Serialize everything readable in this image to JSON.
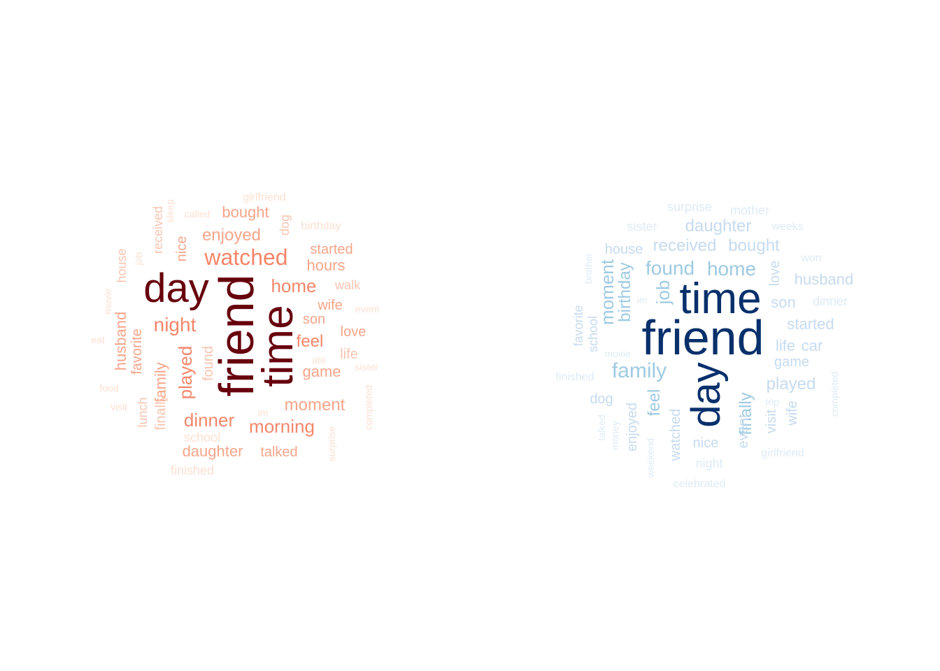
{
  "clouds": [
    {
      "name": "red-cloud",
      "words": [
        {
          "t": "friend",
          "w": 10,
          "c": "#67000d",
          "v": true
        },
        {
          "t": "time",
          "w": 9,
          "c": "#67000d",
          "v": true
        },
        {
          "t": "day",
          "w": 9,
          "c": "#67000d",
          "v": false
        },
        {
          "t": "watched",
          "w": 5,
          "c": "#f4866a",
          "v": false
        },
        {
          "t": "night",
          "w": 4,
          "c": "#f4866a",
          "v": false
        },
        {
          "t": "played",
          "w": 4,
          "c": "#f4866a",
          "v": true
        },
        {
          "t": "home",
          "w": 4,
          "c": "#f4866a",
          "v": false
        },
        {
          "t": "dinner",
          "w": 4,
          "c": "#f4866a",
          "v": false
        },
        {
          "t": "morning",
          "w": 4,
          "c": "#f4866a",
          "v": false
        },
        {
          "t": "enjoyed",
          "w": 3,
          "c": "#f6a58a",
          "v": false
        },
        {
          "t": "feel",
          "w": 3,
          "c": "#f4866a",
          "v": false
        },
        {
          "t": "moment",
          "w": 3,
          "c": "#f6a58a",
          "v": false
        },
        {
          "t": "game",
          "w": 3,
          "c": "#f6a58a",
          "v": false
        },
        {
          "t": "family",
          "w": 3,
          "c": "#f6a58a",
          "v": true
        },
        {
          "t": "bought",
          "w": 3,
          "c": "#f6a58a",
          "v": false
        },
        {
          "t": "hours",
          "w": 3,
          "c": "#f6a58a",
          "v": false
        },
        {
          "t": "daughter",
          "w": 3,
          "c": "#f6a58a",
          "v": false
        },
        {
          "t": "found",
          "w": 2,
          "c": "#f9c4b0",
          "v": true
        },
        {
          "t": "husband",
          "w": 3,
          "c": "#f6a58a",
          "v": true
        },
        {
          "t": "favorite",
          "w": 2,
          "c": "#f6a58a",
          "v": true
        },
        {
          "t": "love",
          "w": 2,
          "c": "#f6a58a",
          "v": false
        },
        {
          "t": "son",
          "w": 2,
          "c": "#f6a58a",
          "v": false
        },
        {
          "t": "wife",
          "w": 2,
          "c": "#f6a58a",
          "v": false
        },
        {
          "t": "started",
          "w": 2,
          "c": "#f6a58a",
          "v": false
        },
        {
          "t": "nice",
          "w": 2,
          "c": "#f6a58a",
          "v": true
        },
        {
          "t": "talked",
          "w": 2,
          "c": "#f6a58a",
          "v": false
        },
        {
          "t": "walk",
          "w": 2,
          "c": "#f9c4b0",
          "v": false
        },
        {
          "t": "life",
          "w": 2,
          "c": "#f9c4b0",
          "v": false
        },
        {
          "t": "finally",
          "w": 2,
          "c": "#f9c4b0",
          "v": true
        },
        {
          "t": "received",
          "w": 2,
          "c": "#f9c4b0",
          "v": true
        },
        {
          "t": "lunch",
          "w": 2,
          "c": "#f9c4b0",
          "v": true
        },
        {
          "t": "house",
          "w": 2,
          "c": "#f9c4b0",
          "v": true
        },
        {
          "t": "dog",
          "w": 2,
          "c": "#f9c4b0",
          "v": true
        },
        {
          "t": "school",
          "w": 2,
          "c": "#fde0d2",
          "v": false
        },
        {
          "t": "finished",
          "w": 1,
          "c": "#fde0d2",
          "v": false
        },
        {
          "t": "girlfriend",
          "w": 1,
          "c": "#fde0d2",
          "v": false
        },
        {
          "t": "birthday",
          "w": 1,
          "c": "#fde0d2",
          "v": false
        },
        {
          "t": "called",
          "w": 1,
          "c": "#fde0d2",
          "v": false
        },
        {
          "t": "sleep",
          "w": 1,
          "c": "#fde0d2",
          "v": true
        },
        {
          "t": "job",
          "w": 1,
          "c": "#fde0d2",
          "v": true
        },
        {
          "t": "movie",
          "w": 1,
          "c": "#fde0d2",
          "v": true
        },
        {
          "t": "event",
          "w": 1,
          "c": "#fde0d2",
          "v": false
        },
        {
          "t": "eat",
          "w": 1,
          "c": "#fde0d2",
          "v": false
        },
        {
          "t": "food",
          "w": 1,
          "c": "#fde0d2",
          "v": false
        },
        {
          "t": "visit",
          "w": 1,
          "c": "#fde0d2",
          "v": false
        },
        {
          "t": "ate",
          "w": 1,
          "c": "#fde0d2",
          "v": false
        },
        {
          "t": "sister",
          "w": 1,
          "c": "#fde0d2",
          "v": false
        },
        {
          "t": "completed",
          "w": 1,
          "c": "#fde0d2",
          "v": true
        },
        {
          "t": "im",
          "w": 1,
          "c": "#fde0d2",
          "v": false
        },
        {
          "t": "surprise",
          "w": 1,
          "c": "#fde0d2",
          "v": true
        }
      ]
    },
    {
      "name": "blue-cloud",
      "words": [
        {
          "t": "friend",
          "w": 10,
          "c": "#08306b",
          "v": false
        },
        {
          "t": "time",
          "w": 9,
          "c": "#08306b",
          "v": false
        },
        {
          "t": "day",
          "w": 9,
          "c": "#08306b",
          "v": true
        },
        {
          "t": "family",
          "w": 4,
          "c": "#9ecae1",
          "v": false
        },
        {
          "t": "found",
          "w": 4,
          "c": "#9ecae1",
          "v": false
        },
        {
          "t": "home",
          "w": 4,
          "c": "#9ecae1",
          "v": false
        },
        {
          "t": "job",
          "w": 3,
          "c": "#9ecae1",
          "v": true
        },
        {
          "t": "moment",
          "w": 3,
          "c": "#9ecae1",
          "v": true
        },
        {
          "t": "birthday",
          "w": 3,
          "c": "#9ecae1",
          "v": true
        },
        {
          "t": "feel",
          "w": 3,
          "c": "#9ecae1",
          "v": true
        },
        {
          "t": "finally",
          "w": 3,
          "c": "#9ecae1",
          "v": true
        },
        {
          "t": "daughter",
          "w": 3,
          "c": "#c6dbef",
          "v": false
        },
        {
          "t": "received",
          "w": 3,
          "c": "#c6dbef",
          "v": false
        },
        {
          "t": "bought",
          "w": 3,
          "c": "#c6dbef",
          "v": false
        },
        {
          "t": "husband",
          "w": 3,
          "c": "#c6dbef",
          "v": false
        },
        {
          "t": "son",
          "w": 2,
          "c": "#c6dbef",
          "v": false
        },
        {
          "t": "started",
          "w": 2,
          "c": "#c6dbef",
          "v": false
        },
        {
          "t": "life",
          "w": 2,
          "c": "#c6dbef",
          "v": false
        },
        {
          "t": "car",
          "w": 2,
          "c": "#c6dbef",
          "v": false
        },
        {
          "t": "game",
          "w": 2,
          "c": "#c6dbef",
          "v": false
        },
        {
          "t": "played",
          "w": 3,
          "c": "#c6dbef",
          "v": false
        },
        {
          "t": "enjoyed",
          "w": 2,
          "c": "#c6dbef",
          "v": true
        },
        {
          "t": "watched",
          "w": 2,
          "c": "#c6dbef",
          "v": true
        },
        {
          "t": "event",
          "w": 2,
          "c": "#c6dbef",
          "v": true
        },
        {
          "t": "visit",
          "w": 2,
          "c": "#c6dbef",
          "v": true
        },
        {
          "t": "wife",
          "w": 2,
          "c": "#c6dbef",
          "v": true
        },
        {
          "t": "love",
          "w": 2,
          "c": "#c6dbef",
          "v": true
        },
        {
          "t": "house",
          "w": 2,
          "c": "#c6dbef",
          "v": false
        },
        {
          "t": "nice",
          "w": 2,
          "c": "#c6dbef",
          "v": false
        },
        {
          "t": "dog",
          "w": 2,
          "c": "#c6dbef",
          "v": false
        },
        {
          "t": "school",
          "w": 2,
          "c": "#c6dbef",
          "v": true
        },
        {
          "t": "favorite",
          "w": 2,
          "c": "#c6dbef",
          "v": true
        },
        {
          "t": "surprise",
          "w": 1,
          "c": "#deebf7",
          "v": false
        },
        {
          "t": "mother",
          "w": 1,
          "c": "#deebf7",
          "v": false
        },
        {
          "t": "sister",
          "w": 1,
          "c": "#deebf7",
          "v": false
        },
        {
          "t": "weeks",
          "w": 1,
          "c": "#deebf7",
          "v": false
        },
        {
          "t": "won",
          "w": 1,
          "c": "#deebf7",
          "v": false
        },
        {
          "t": "dinner",
          "w": 1,
          "c": "#deebf7",
          "v": false
        },
        {
          "t": "brother",
          "w": 1,
          "c": "#deebf7",
          "v": true
        },
        {
          "t": "im",
          "w": 1,
          "c": "#deebf7",
          "v": false
        },
        {
          "t": "movie",
          "w": 1,
          "c": "#deebf7",
          "v": false
        },
        {
          "t": "finished",
          "w": 1,
          "c": "#deebf7",
          "v": false
        },
        {
          "t": "trip",
          "w": 1,
          "c": "#deebf7",
          "v": false
        },
        {
          "t": "completed",
          "w": 1,
          "c": "#deebf7",
          "v": true
        },
        {
          "t": "talked",
          "w": 1,
          "c": "#deebf7",
          "v": true
        },
        {
          "t": "money",
          "w": 1,
          "c": "#deebf7",
          "v": true
        },
        {
          "t": "weekend",
          "w": 1,
          "c": "#deebf7",
          "v": true
        },
        {
          "t": "night",
          "w": 1,
          "c": "#deebf7",
          "v": false
        },
        {
          "t": "girlfriend",
          "w": 1,
          "c": "#deebf7",
          "v": false
        },
        {
          "t": "celebrated",
          "w": 1,
          "c": "#deebf7",
          "v": false
        }
      ]
    }
  ]
}
